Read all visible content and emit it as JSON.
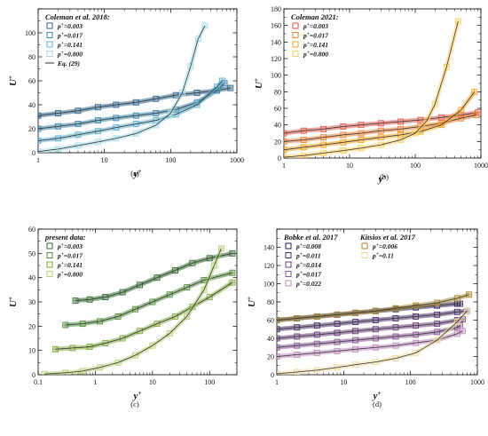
{
  "chart_data": [
    {
      "id": "a",
      "type": "scatter",
      "caption": "(a)",
      "xlabel": "y+",
      "ylabel": "U+",
      "xscale": "log",
      "xlim": [
        1,
        1000
      ],
      "ylim": [
        0,
        120
      ],
      "xticks": [
        1,
        10,
        100,
        1000
      ],
      "xtick_labels": [
        "1",
        "10",
        "100",
        "1000"
      ],
      "yticks": [
        0,
        20,
        40,
        60,
        80,
        100,
        120
      ],
      "ytick_labels": [
        "0",
        "20",
        "40",
        "60",
        "80",
        "100",
        ""
      ],
      "legend_title": "Coleman et al. 2018:",
      "legend_position": "top-left",
      "series": [
        {
          "name": "p+=0.003",
          "color": "#2f6690",
          "x": [
            1,
            2,
            4,
            8,
            15,
            30,
            60,
            120,
            250,
            500,
            800
          ],
          "y": [
            31,
            33,
            35,
            38,
            40,
            42,
            45,
            48,
            50,
            52,
            54
          ]
        },
        {
          "name": "p+=0.017",
          "color": "#3a86ad",
          "x": [
            1,
            2,
            4,
            8,
            15,
            30,
            60,
            120,
            250,
            500,
            650
          ],
          "y": [
            20,
            22,
            24,
            27,
            29,
            31,
            33,
            36,
            42,
            52,
            58
          ]
        },
        {
          "name": "p+=0.141",
          "color": "#5fb2cf",
          "x": [
            1,
            2,
            4,
            8,
            15,
            30,
            60,
            120,
            250,
            500,
            600
          ],
          "y": [
            10,
            12,
            15,
            18,
            21,
            24,
            27,
            32,
            40,
            55,
            60
          ]
        },
        {
          "name": "p+=0.800",
          "color": "#a9dcea",
          "x": [
            1,
            2,
            4,
            8,
            15,
            30,
            60,
            100,
            150,
            200,
            260,
            330
          ],
          "y": [
            1,
            3,
            6,
            9,
            12,
            16,
            23,
            33,
            50,
            72,
            95,
            106
          ]
        }
      ],
      "line_label": "Eq. (29)"
    },
    {
      "id": "b",
      "type": "scatter",
      "caption": "(b)",
      "xlabel": "y+",
      "ylabel": "U+",
      "xscale": "log",
      "xlim": [
        1,
        1000
      ],
      "ylim": [
        0,
        180
      ],
      "xticks": [
        1,
        10,
        100,
        1000
      ],
      "xtick_labels": [
        "1",
        "10",
        "100",
        "1000"
      ],
      "yticks": [
        0,
        20,
        40,
        60,
        80,
        100,
        120,
        140,
        160,
        180
      ],
      "ytick_labels": [
        "0",
        "20",
        "40",
        "60",
        "80",
        "100",
        "120",
        "140",
        "160",
        "180"
      ],
      "legend_title": "Coleman 2021:",
      "legend_position": "top-left",
      "series": [
        {
          "name": "p+=0.003",
          "color": "#e55a4e",
          "x": [
            1,
            2,
            4,
            8,
            15,
            30,
            60,
            120,
            250,
            500,
            900
          ],
          "y": [
            30,
            33,
            35,
            38,
            40,
            42,
            44,
            46,
            49,
            52,
            55
          ]
        },
        {
          "name": "p+=0.017",
          "color": "#f0833a",
          "x": [
            1,
            2,
            4,
            8,
            15,
            30,
            60,
            120,
            250,
            500,
            850
          ],
          "y": [
            20,
            22,
            25,
            28,
            30,
            33,
            35,
            38,
            42,
            48,
            52
          ]
        },
        {
          "name": "p+=0.141",
          "color": "#f5a623",
          "x": [
            1,
            2,
            4,
            8,
            15,
            30,
            60,
            120,
            250,
            500,
            800
          ],
          "y": [
            10,
            13,
            16,
            19,
            22,
            25,
            28,
            32,
            40,
            58,
            80
          ]
        },
        {
          "name": "p+=0.800",
          "color": "#ffd166",
          "x": [
            1,
            2,
            4,
            8,
            15,
            30,
            60,
            100,
            150,
            200,
            300,
            450
          ],
          "y": [
            1,
            3,
            6,
            9,
            12,
            16,
            22,
            30,
            45,
            65,
            110,
            165
          ]
        }
      ]
    },
    {
      "id": "c",
      "type": "scatter",
      "caption": "(c)",
      "xlabel": "y+",
      "ylabel": "U+",
      "xscale": "log",
      "xlim": [
        0.1,
        300
      ],
      "ylim": [
        0,
        60
      ],
      "xticks": [
        0.1,
        1,
        10,
        100
      ],
      "xtick_labels": [
        "0.1",
        "1",
        "10",
        "100"
      ],
      "yticks": [
        0,
        10,
        20,
        30,
        40,
        50,
        60
      ],
      "ytick_labels": [
        "0",
        "10",
        "20",
        "30",
        "40",
        "50",
        "60"
      ],
      "legend_title": "present data:",
      "legend_position": "top-left",
      "series": [
        {
          "name": "p+=0.003",
          "color": "#2f6b2f",
          "x": [
            0.45,
            0.8,
            1.5,
            3,
            6,
            12,
            25,
            50,
            100,
            250
          ],
          "y": [
            30.5,
            31,
            32,
            34,
            37,
            40,
            43,
            46,
            48,
            50
          ]
        },
        {
          "name": "p+=0.017",
          "color": "#4f8a3a",
          "x": [
            0.3,
            0.6,
            1.2,
            2.5,
            5,
            10,
            20,
            40,
            80,
            250
          ],
          "y": [
            20.5,
            21,
            22,
            24,
            27,
            30,
            33,
            36,
            39,
            42
          ]
        },
        {
          "name": "p+=0.141",
          "color": "#7fa83a",
          "x": [
            0.2,
            0.4,
            0.8,
            1.5,
            3,
            6,
            12,
            25,
            50,
            100,
            250
          ],
          "y": [
            10.5,
            11,
            11.5,
            13,
            15,
            18,
            21,
            24,
            28,
            32,
            38
          ]
        },
        {
          "name": "p+=0.800",
          "color": "#b8d47a",
          "x": [
            0.13,
            0.3,
            0.6,
            1.2,
            2.5,
            5,
            10,
            20,
            40,
            80,
            120,
            160
          ],
          "y": [
            0.3,
            0.8,
            1.5,
            3,
            5,
            8,
            12,
            17,
            24,
            35,
            45,
            52
          ]
        }
      ]
    },
    {
      "id": "d",
      "type": "scatter",
      "caption": "(d)",
      "xlabel": "y+",
      "ylabel": "U+",
      "xscale": "log",
      "xlim": [
        1,
        1000
      ],
      "ylim": [
        0,
        160
      ],
      "xticks": [
        1,
        10,
        100,
        1000
      ],
      "xtick_labels": [
        "1",
        "10",
        "100",
        "1000"
      ],
      "yticks": [
        0,
        20,
        40,
        60,
        80,
        100,
        120,
        140,
        160
      ],
      "ytick_labels": [
        "0",
        "20",
        "40",
        "60",
        "80",
        "100",
        "120",
        "140",
        ""
      ],
      "legend_title": "Bobke et al. 2017",
      "legend_title_2": "Kitsios et al. 2017",
      "legend_position": "top-left",
      "series": [
        {
          "name": "p+=0.008",
          "color": "#2b1d52",
          "x": [
            1,
            2,
            4,
            8,
            15,
            30,
            60,
            120,
            250,
            500,
            550
          ],
          "y": [
            60,
            62,
            64,
            66,
            68,
            70,
            72,
            74,
            76,
            78,
            78
          ]
        },
        {
          "name": "p+=0.011",
          "color": "#4a2f6e",
          "x": [
            1,
            2,
            4,
            8,
            15,
            30,
            60,
            120,
            250,
            500,
            700
          ],
          "y": [
            50,
            52,
            54,
            56,
            58,
            60,
            62,
            64,
            66,
            69,
            70
          ]
        },
        {
          "name": "p+=0.014",
          "color": "#6b3f7c",
          "x": [
            1,
            2,
            4,
            8,
            15,
            30,
            60,
            120,
            250,
            500,
            600
          ],
          "y": [
            40,
            42,
            44,
            46,
            48,
            50,
            52,
            54,
            56,
            60,
            61
          ]
        },
        {
          "name": "p+=0.017",
          "color": "#8e5b9a",
          "x": [
            1,
            2,
            4,
            8,
            15,
            30,
            60,
            120,
            250,
            500,
            550
          ],
          "y": [
            30,
            32,
            34,
            36,
            38,
            40,
            42,
            44,
            47,
            52,
            54
          ]
        },
        {
          "name": "p+=0.022",
          "color": "#c08bbf",
          "x": [
            1,
            2,
            4,
            8,
            15,
            30,
            60,
            120,
            250,
            500,
            600
          ],
          "y": [
            20,
            22,
            24,
            26,
            28,
            30,
            32,
            35,
            38,
            45,
            48
          ]
        },
        {
          "name": "p+=0.006",
          "color": "#a88a2f",
          "x": [
            1,
            2,
            4,
            8,
            15,
            30,
            60,
            120,
            250,
            500,
            750
          ],
          "y": [
            60,
            62,
            64,
            66,
            68,
            70,
            73,
            76,
            79,
            84,
            88
          ]
        },
        {
          "name": "p+=0.11",
          "color": "#efdca6",
          "x": [
            1,
            2,
            4,
            8,
            15,
            30,
            60,
            120,
            250,
            500,
            700
          ],
          "y": [
            1,
            3,
            5,
            8,
            11,
            14,
            18,
            24,
            38,
            58,
            70
          ]
        }
      ]
    }
  ]
}
